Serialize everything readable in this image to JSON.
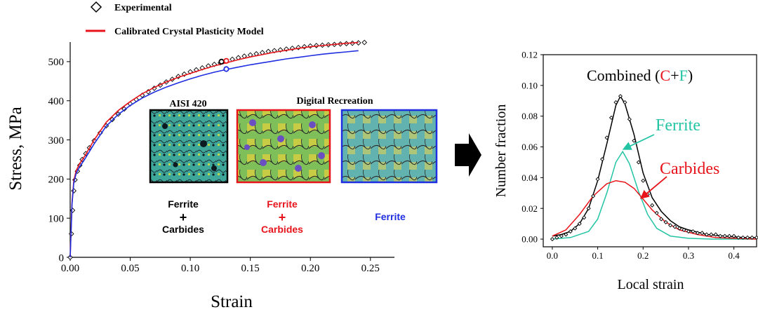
{
  "figure": {
    "arrow_color": "#000000",
    "colors": {
      "experimental": "#000000",
      "model_red": "#e8141b",
      "model_blue": "#1f2ee0",
      "ferrite": "#22c4a4",
      "carbides": "#e8141b"
    }
  },
  "chart_data": [
    {
      "type": "line",
      "title": "",
      "xlabel": "Strain",
      "ylabel": "Stress, MPa",
      "xlim": [
        0,
        0.27
      ],
      "ylim": [
        0,
        550
      ],
      "xticks": [
        "0.00",
        "0.05",
        "0.10",
        "0.15",
        "0.20",
        "0.25"
      ],
      "yticks": [
        "0",
        "100",
        "200",
        "300",
        "400",
        "500"
      ],
      "legend": {
        "placement": "top-left",
        "entries": [
          "Experimental",
          "Calibrated Crystal Plasticity Model"
        ]
      },
      "series": [
        {
          "name": "Experimental",
          "marker": "diamond-open",
          "color": "#000000",
          "x": [
            0.0,
            0.001,
            0.002,
            0.003,
            0.004,
            0.006,
            0.008,
            0.01,
            0.013,
            0.016,
            0.02,
            0.025,
            0.03,
            0.035,
            0.04,
            0.045,
            0.05,
            0.055,
            0.06,
            0.065,
            0.07,
            0.075,
            0.08,
            0.085,
            0.09,
            0.095,
            0.1,
            0.105,
            0.11,
            0.115,
            0.12,
            0.125,
            0.13,
            0.135,
            0.14,
            0.145,
            0.15,
            0.155,
            0.16,
            0.165,
            0.17,
            0.175,
            0.18,
            0.185,
            0.19,
            0.195,
            0.2,
            0.205,
            0.21,
            0.215,
            0.22,
            0.225,
            0.23,
            0.235,
            0.24,
            0.245
          ],
          "y": [
            0,
            60,
            120,
            170,
            198,
            220,
            235,
            250,
            265,
            280,
            298,
            318,
            336,
            352,
            366,
            379,
            392,
            403,
            414,
            423,
            432,
            440,
            448,
            455,
            462,
            468,
            474,
            479,
            484,
            489,
            493,
            497,
            502,
            506,
            510,
            514,
            517,
            520,
            523,
            526,
            528,
            530,
            532,
            534,
            536,
            538,
            540,
            541,
            542,
            543,
            544,
            545,
            546,
            547,
            548,
            549
          ]
        },
        {
          "name": "Calibrated Crystal Plasticity Model",
          "marker": "none",
          "color": "#e8141b",
          "x": [
            0.0,
            0.0015,
            0.003,
            0.005,
            0.008,
            0.012,
            0.02,
            0.03,
            0.04,
            0.05,
            0.06,
            0.07,
            0.08,
            0.09,
            0.1,
            0.11,
            0.12,
            0.13,
            0.14,
            0.15,
            0.16,
            0.17,
            0.18,
            0.19,
            0.2,
            0.21,
            0.22,
            0.23,
            0.24
          ],
          "y": [
            0,
            140,
            195,
            222,
            240,
            258,
            300,
            345,
            375,
            398,
            418,
            434,
            448,
            460,
            470,
            480,
            489,
            497,
            505,
            512,
            518,
            524,
            529,
            534,
            538,
            541,
            544,
            547,
            549
          ]
        },
        {
          "name": "",
          "marker": "none",
          "color": "#1f2ee0",
          "x": [
            0.0,
            0.0015,
            0.003,
            0.005,
            0.008,
            0.012,
            0.02,
            0.03,
            0.04,
            0.05,
            0.06,
            0.07,
            0.08,
            0.09,
            0.1,
            0.11,
            0.12,
            0.13,
            0.14,
            0.15,
            0.16,
            0.17,
            0.18,
            0.19,
            0.2,
            0.21,
            0.22,
            0.23,
            0.24
          ],
          "y": [
            0,
            135,
            190,
            215,
            232,
            250,
            290,
            335,
            365,
            388,
            407,
            422,
            435,
            446,
            456,
            465,
            473,
            480,
            486,
            492,
            497,
            502,
            507,
            511,
            515,
            519,
            522,
            525,
            528
          ]
        }
      ],
      "highlight_points": [
        {
          "series": "Experimental",
          "x": 0.126,
          "y": 500,
          "color": "#000000"
        },
        {
          "series": "Calibrated Crystal Plasticity Model",
          "x": 0.13,
          "y": 502,
          "color": "#e8141b"
        },
        {
          "series": "",
          "x": 0.13,
          "y": 481,
          "color": "#1f2ee0"
        }
      ],
      "insets": {
        "title_left": "AISI 420",
        "title_right": "Digital Recreation",
        "panels": [
          {
            "frame_color": "#000000",
            "label_top": "Ferrite",
            "plus": "+",
            "label_bottom": "Carbides",
            "label_color": "#000000"
          },
          {
            "frame_color": "#e8141b",
            "label_top": "Ferrite",
            "plus": "+",
            "label_bottom": "Carbides",
            "label_color": "#e8141b"
          },
          {
            "frame_color": "#1f2ee0",
            "label_top": "Ferrite",
            "plus": "",
            "label_bottom": "",
            "label_color": "#1f2ee0"
          }
        ]
      }
    },
    {
      "type": "line",
      "title": "",
      "xlabel": "Local strain",
      "ylabel": "Number fraction",
      "xlim": [
        -0.02,
        0.45
      ],
      "ylim": [
        -0.005,
        0.12
      ],
      "xticks": [
        "0.0",
        "0.1",
        "0.2",
        "0.3",
        "0.4"
      ],
      "yticks": [
        "0.00",
        "0.02",
        "0.04",
        "0.06",
        "0.08",
        "0.10",
        "0.12"
      ],
      "annotations": {
        "combined_prefix": "Combined (",
        "combined_c": "C",
        "combined_plus": "+",
        "combined_f": "F",
        "combined_suffix": ")",
        "ferrite": "Ferrite",
        "carbides": "Carbides"
      },
      "series": [
        {
          "name": "Combined",
          "marker": "none",
          "color": "#000000",
          "x": [
            0.0,
            0.02,
            0.04,
            0.06,
            0.08,
            0.1,
            0.12,
            0.14,
            0.15,
            0.16,
            0.18,
            0.2,
            0.22,
            0.24,
            0.26,
            0.28,
            0.3,
            0.34,
            0.38,
            0.42,
            0.45
          ],
          "y": [
            0.002,
            0.003,
            0.005,
            0.01,
            0.02,
            0.038,
            0.062,
            0.087,
            0.093,
            0.088,
            0.068,
            0.043,
            0.027,
            0.018,
            0.012,
            0.008,
            0.006,
            0.003,
            0.002,
            0.001,
            0.001
          ]
        },
        {
          "name": "Ferrite",
          "marker": "none",
          "color": "#22c4a4",
          "x": [
            0.0,
            0.04,
            0.08,
            0.1,
            0.12,
            0.14,
            0.155,
            0.17,
            0.19,
            0.21,
            0.23,
            0.26,
            0.3,
            0.35,
            0.4,
            0.45
          ],
          "y": [
            0.0,
            0.001,
            0.005,
            0.013,
            0.03,
            0.05,
            0.057,
            0.049,
            0.031,
            0.016,
            0.007,
            0.002,
            0.0005,
            0.0,
            0.0,
            0.0
          ]
        },
        {
          "name": "Carbides",
          "marker": "none",
          "color": "#e8141b",
          "x": [
            0.0,
            0.03,
            0.06,
            0.09,
            0.12,
            0.14,
            0.16,
            0.18,
            0.2,
            0.22,
            0.25,
            0.28,
            0.32,
            0.36,
            0.4,
            0.45
          ],
          "y": [
            0.002,
            0.006,
            0.016,
            0.028,
            0.036,
            0.038,
            0.037,
            0.033,
            0.026,
            0.019,
            0.011,
            0.006,
            0.003,
            0.001,
            0.0005,
            0.0
          ]
        },
        {
          "name": "Experimental",
          "marker": "diamond-open",
          "color": "#000000",
          "x": [
            0.0,
            0.01,
            0.02,
            0.03,
            0.04,
            0.05,
            0.06,
            0.07,
            0.08,
            0.09,
            0.1,
            0.11,
            0.12,
            0.13,
            0.14,
            0.15,
            0.16,
            0.17,
            0.18,
            0.19,
            0.2,
            0.21,
            0.22,
            0.23,
            0.24,
            0.25,
            0.26,
            0.27,
            0.28,
            0.29,
            0.3,
            0.31,
            0.32,
            0.33,
            0.34,
            0.35,
            0.36,
            0.37,
            0.38,
            0.39,
            0.4,
            0.41,
            0.42,
            0.43,
            0.44,
            0.45
          ],
          "y": [
            0.0,
            0.001,
            0.002,
            0.003,
            0.005,
            0.007,
            0.01,
            0.014,
            0.02,
            0.028,
            0.039,
            0.052,
            0.066,
            0.079,
            0.089,
            0.093,
            0.089,
            0.078,
            0.064,
            0.05,
            0.038,
            0.029,
            0.022,
            0.017,
            0.013,
            0.011,
            0.009,
            0.008,
            0.007,
            0.006,
            0.005,
            0.005,
            0.004,
            0.004,
            0.003,
            0.003,
            0.003,
            0.002,
            0.002,
            0.002,
            0.002,
            0.001,
            0.001,
            0.001,
            0.001,
            0.001
          ]
        }
      ]
    }
  ]
}
